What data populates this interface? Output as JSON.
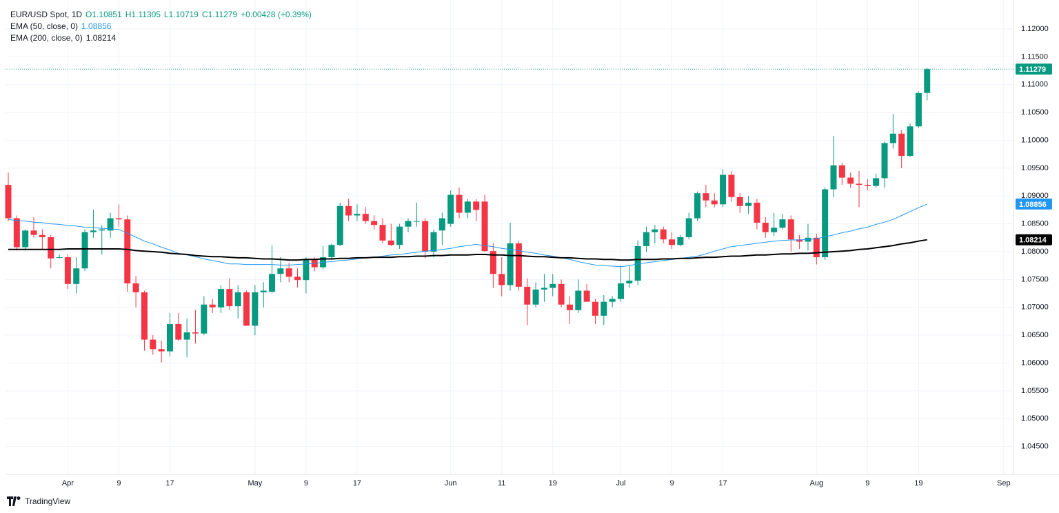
{
  "chart_data": {
    "type": "candlestick",
    "title": "EUR/USD Spot, 1D",
    "ohlc_text": [
      "O1.10851",
      "H1.11305",
      "L1.10719",
      "C1.11279",
      "+0.00428 (+0.39%)"
    ],
    "branding": "TradingView",
    "up_color": "#089981",
    "down_color": "#f23645",
    "grid": true,
    "categories": [
      null,
      null,
      null,
      null,
      null,
      null,
      null,
      "Apr",
      null,
      null,
      null,
      null,
      null,
      "9",
      null,
      null,
      null,
      null,
      null,
      "17",
      null,
      null,
      null,
      null,
      null,
      null,
      null,
      null,
      null,
      "May",
      null,
      null,
      null,
      null,
      null,
      "9",
      null,
      null,
      null,
      null,
      null,
      "17",
      null,
      null,
      null,
      null,
      null,
      null,
      null,
      null,
      null,
      null,
      "Jun",
      null,
      null,
      null,
      null,
      null,
      "11",
      null,
      null,
      null,
      null,
      null,
      "19",
      null,
      null,
      null,
      null,
      null,
      null,
      null,
      "Jul",
      null,
      null,
      null,
      null,
      null,
      "9",
      null,
      null,
      null,
      null,
      null,
      "17",
      null,
      null,
      null,
      null,
      null,
      null,
      null,
      null,
      null,
      null,
      "Aug",
      null,
      null,
      null,
      null,
      null,
      "9",
      null,
      null,
      null,
      null,
      null,
      "19",
      null,
      null,
      null,
      null,
      null,
      null,
      null,
      null,
      null,
      "Sep"
    ],
    "open": [
      1.092,
      1.086,
      1.0808,
      1.0838,
      1.083,
      1.0826,
      1.079,
      1.079,
      1.0742,
      1.077,
      1.0835,
      1.0838,
      1.0838,
      1.086,
      1.0858,
      1.0743,
      1.0727,
      1.0642,
      1.0625,
      1.0621,
      1.067,
      1.0642,
      1.0655,
      1.0653,
      1.0705,
      1.07,
      1.0733,
      1.0702,
      1.0727,
      1.0667,
      1.0727,
      1.0728,
      1.076,
      1.077,
      1.0755,
      1.0749,
      1.0785,
      1.0772,
      1.079,
      1.0812,
      1.0882,
      1.0865,
      1.0868,
      1.0855,
      1.0848,
      1.082,
      1.0812,
      1.0845,
      1.0855,
      1.0855,
      1.08,
      1.0838,
      1.085,
      1.0902,
      1.087,
      1.089,
      1.089,
      1.0801,
      1.076,
      1.074,
      1.0815,
      1.0737,
      1.0705,
      1.0732,
      1.0735,
      1.0742,
      1.0705,
      1.0695,
      1.073,
      1.071,
      1.0685,
      1.071,
      1.0715,
      1.0743,
      1.0748,
      1.081,
      1.0835,
      1.084,
      1.0822,
      1.0812,
      1.0826,
      1.086,
      1.0905,
      1.0892,
      1.0885,
      1.0938,
      1.0898,
      1.0882,
      1.0888,
      1.0852,
      1.0835,
      1.0843,
      1.0858,
      1.0822,
      1.0818,
      1.0825,
      1.079,
      1.0912,
      1.0955,
      1.0933,
      1.0922,
      1.092,
      1.0918,
      1.0932,
      1.0995,
      1.1012,
      1.0972,
      1.1025,
      1.10851,
      null,
      null,
      null,
      null,
      null,
      null,
      null,
      null,
      null
    ],
    "high": [
      1.0942,
      1.0865,
      1.084,
      1.0862,
      1.084,
      1.083,
      1.0795,
      1.0795,
      1.079,
      1.084,
      1.0875,
      1.0848,
      1.087,
      1.0885,
      1.0865,
      1.0756,
      1.073,
      1.065,
      1.064,
      1.069,
      1.069,
      1.068,
      1.0695,
      1.072,
      1.0715,
      1.074,
      1.0752,
      1.074,
      1.073,
      1.074,
      1.0745,
      1.0812,
      1.079,
      1.078,
      1.077,
      1.079,
      1.079,
      1.081,
      1.0815,
      1.0888,
      1.0895,
      1.0885,
      1.088,
      1.0865,
      1.086,
      1.085,
      1.085,
      1.086,
      1.0888,
      1.086,
      1.084,
      1.087,
      1.091,
      1.0915,
      1.0895,
      1.0895,
      1.0902,
      1.0815,
      1.079,
      1.0852,
      1.082,
      1.0752,
      1.0745,
      1.076,
      1.076,
      1.075,
      1.072,
      1.075,
      1.0742,
      1.0715,
      1.0722,
      1.072,
      1.0775,
      1.0775,
      1.082,
      1.0845,
      1.0848,
      1.0845,
      1.0835,
      1.083,
      1.087,
      1.0908,
      1.092,
      1.0905,
      1.0948,
      1.0945,
      1.0905,
      1.09,
      1.0895,
      1.0862,
      1.087,
      1.0868,
      1.0865,
      1.083,
      1.085,
      1.0832,
      1.0915,
      1.1008,
      1.096,
      1.0942,
      1.0945,
      1.093,
      1.094,
      1.0998,
      1.1047,
      1.1018,
      1.103,
      1.1088,
      1.11305,
      null,
      null,
      null,
      null,
      null,
      null,
      null,
      null,
      null
    ],
    "low": [
      1.0855,
      1.0802,
      1.0802,
      1.0825,
      1.0805,
      1.077,
      1.0788,
      1.0733,
      1.0725,
      1.0765,
      1.0825,
      1.0795,
      1.0825,
      1.0845,
      1.0728,
      1.07,
      1.0622,
      1.0615,
      1.0601,
      1.0612,
      1.064,
      1.061,
      1.0635,
      1.065,
      1.069,
      1.069,
      1.0695,
      1.068,
      1.0667,
      1.065,
      1.07,
      1.0725,
      1.0745,
      1.0745,
      1.0736,
      1.0725,
      1.0765,
      1.0768,
      1.0785,
      1.081,
      1.0855,
      1.0855,
      1.085,
      1.084,
      1.0815,
      1.081,
      1.0805,
      1.0835,
      1.0845,
      1.0788,
      1.079,
      1.0812,
      1.0845,
      1.086,
      1.086,
      1.0855,
      1.08,
      1.0735,
      1.072,
      1.073,
      1.073,
      1.0668,
      1.07,
      1.071,
      1.072,
      1.07,
      1.067,
      1.069,
      1.071,
      1.067,
      1.0668,
      1.07,
      1.071,
      1.0735,
      1.074,
      1.08,
      1.0815,
      1.0815,
      1.0805,
      1.081,
      1.0822,
      1.0855,
      1.088,
      1.088,
      1.088,
      1.089,
      1.087,
      1.0868,
      1.084,
      1.0825,
      1.0828,
      1.084,
      1.08,
      1.0805,
      1.0802,
      1.0777,
      1.0785,
      1.0898,
      1.092,
      1.0915,
      1.088,
      1.091,
      1.0915,
      1.0915,
      1.0985,
      1.095,
      1.097,
      1.1022,
      1.10719,
      null,
      null,
      null,
      null,
      null,
      null,
      null,
      null,
      null
    ],
    "close": [
      1.086,
      1.0808,
      1.0838,
      1.083,
      1.0826,
      1.0788,
      1.079,
      1.0742,
      1.077,
      1.0835,
      1.0838,
      1.084,
      1.086,
      1.0858,
      1.0743,
      1.0727,
      1.0642,
      1.0625,
      1.0621,
      1.067,
      1.0642,
      1.0655,
      1.0653,
      1.0705,
      1.07,
      1.0733,
      1.0702,
      1.0727,
      1.0667,
      1.0727,
      1.073,
      1.076,
      1.077,
      1.0755,
      1.0749,
      1.0785,
      1.0772,
      1.079,
      1.0812,
      1.0882,
      1.0865,
      1.0868,
      1.0855,
      1.0848,
      1.082,
      1.0812,
      1.0845,
      1.0855,
      1.0855,
      1.08,
      1.0835,
      1.086,
      1.0902,
      1.087,
      1.089,
      1.0875,
      1.0801,
      1.076,
      1.074,
      1.0815,
      1.0737,
      1.0705,
      1.0732,
      1.0735,
      1.0742,
      1.0705,
      1.0695,
      1.073,
      1.071,
      1.0685,
      1.071,
      1.0715,
      1.0743,
      1.0748,
      1.081,
      1.0835,
      1.084,
      1.0822,
      1.0812,
      1.0826,
      1.086,
      1.0905,
      1.0892,
      1.0885,
      1.0938,
      1.0898,
      1.0882,
      1.0888,
      1.0852,
      1.0835,
      1.0843,
      1.0858,
      1.0822,
      1.0818,
      1.0825,
      1.079,
      1.0912,
      1.0955,
      1.0933,
      1.0922,
      1.092,
      1.0918,
      1.0932,
      1.0995,
      1.1012,
      1.0972,
      1.1025,
      1.1085,
      1.11279,
      null,
      null,
      null,
      null,
      null,
      null,
      null,
      null,
      null
    ],
    "series": [
      {
        "name": "EMA (50, close, 0)",
        "color": "#2196f3",
        "values": [
          1.0858,
          1.0856,
          1.0855,
          1.0853,
          1.0852,
          1.085,
          1.0849,
          1.0847,
          1.0846,
          1.0844,
          1.0843,
          1.0842,
          1.0841,
          1.084,
          1.0833,
          1.0826,
          1.0819,
          1.0814,
          1.0808,
          1.0803,
          1.0797,
          1.0794,
          1.0791,
          1.0787,
          1.0784,
          1.0781,
          1.0778,
          1.0778,
          1.0777,
          1.0777,
          1.0777,
          1.0777,
          1.0776,
          1.0776,
          1.0777,
          1.0778,
          1.0779,
          1.0781,
          1.0782,
          1.0784,
          1.0785,
          1.0787,
          1.0789,
          1.079,
          1.0792,
          1.0794,
          1.0795,
          1.0797,
          1.0799,
          1.0801,
          1.0802,
          1.0804,
          1.0806,
          1.0809,
          1.0811,
          1.0813,
          1.0811,
          1.0809,
          1.0806,
          1.0804,
          1.0802,
          1.0799,
          1.0797,
          1.0794,
          1.0792,
          1.0789,
          1.0786,
          1.0782,
          1.0779,
          1.0776,
          1.0775,
          1.0774,
          1.0773,
          1.0775,
          1.0778,
          1.078,
          1.0782,
          1.0784,
          1.0786,
          1.0788,
          1.079,
          1.0792,
          1.0796,
          1.0801,
          1.0805,
          1.0809,
          1.0811,
          1.0813,
          1.0815,
          1.0817,
          1.0819,
          1.082,
          1.0821,
          1.0821,
          1.0822,
          1.0823,
          1.0827,
          1.083,
          1.0834,
          1.0837,
          1.0841,
          1.0844,
          1.0849,
          1.0853,
          1.0858,
          1.0865,
          1.0872,
          1.0879,
          1.08856,
          null,
          null,
          null,
          null,
          null,
          null,
          null,
          null,
          null
        ]
      },
      {
        "name": "EMA (200, close, 0)",
        "color": "#000000",
        "values": [
          1.0804,
          1.0804,
          1.0804,
          1.0804,
          1.0804,
          1.0804,
          1.0804,
          1.0805,
          1.0805,
          1.0805,
          1.0805,
          1.0805,
          1.0805,
          1.0805,
          1.0804,
          1.0802,
          1.0801,
          1.08,
          1.0799,
          1.0797,
          1.0796,
          1.0795,
          1.0793,
          1.0792,
          1.0791,
          1.0791,
          1.079,
          1.0789,
          1.0789,
          1.0788,
          1.0787,
          1.0787,
          1.0786,
          1.0785,
          1.0785,
          1.0786,
          1.0786,
          1.0787,
          1.0787,
          1.0788,
          1.0788,
          1.0789,
          1.0789,
          1.079,
          1.079,
          1.079,
          1.0791,
          1.0791,
          1.0792,
          1.0792,
          1.0793,
          1.0793,
          1.0794,
          1.0794,
          1.0794,
          1.0795,
          1.0795,
          1.0794,
          1.0794,
          1.0793,
          1.0793,
          1.0792,
          1.0791,
          1.0791,
          1.079,
          1.0789,
          1.0789,
          1.0788,
          1.0787,
          1.0787,
          1.0786,
          1.0786,
          1.0785,
          1.0785,
          1.0786,
          1.0786,
          1.0786,
          1.0787,
          1.0787,
          1.0788,
          1.0788,
          1.0789,
          1.079,
          1.079,
          1.0791,
          1.0792,
          1.0792,
          1.0793,
          1.0794,
          1.0794,
          1.0795,
          1.0796,
          1.0796,
          1.0797,
          1.0797,
          1.0798,
          1.0799,
          1.08,
          1.0801,
          1.0802,
          1.0804,
          1.0805,
          1.0807,
          1.0809,
          1.0811,
          1.0814,
          1.0816,
          1.0819,
          1.08214,
          null,
          null,
          null,
          null,
          null,
          null,
          null,
          null,
          null
        ]
      }
    ],
    "ylim": [
      1.04,
      1.1252
    ],
    "yticks": [
      {
        "value": 1.045,
        "label": "1.04500"
      },
      {
        "value": 1.05,
        "label": "1.05000"
      },
      {
        "value": 1.055,
        "label": "1.05500"
      },
      {
        "value": 1.06,
        "label": "1.06000"
      },
      {
        "value": 1.065,
        "label": "1.06500"
      },
      {
        "value": 1.07,
        "label": "1.07000"
      },
      {
        "value": 1.075,
        "label": "1.07500"
      },
      {
        "value": 1.08,
        "label": "1.08000"
      },
      {
        "value": 1.085,
        "label": "1.08500"
      },
      {
        "value": 1.09,
        "label": "1.09000"
      },
      {
        "value": 1.095,
        "label": "1.09500"
      },
      {
        "value": 1.1,
        "label": "1.10000"
      },
      {
        "value": 1.105,
        "label": "1.10500"
      },
      {
        "value": 1.11,
        "label": "1.11000"
      },
      {
        "value": 1.115,
        "label": "1.11500"
      },
      {
        "value": 1.12,
        "label": "1.12000"
      }
    ]
  }
}
